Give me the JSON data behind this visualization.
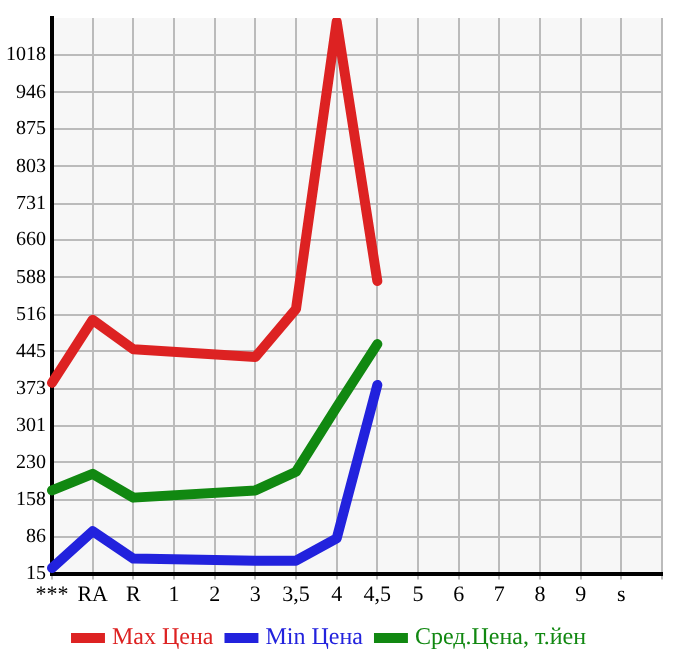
{
  "chart_data": {
    "type": "line",
    "categories": [
      "***",
      "RA",
      "R",
      "1",
      "2",
      "3",
      "3,5",
      "4",
      "4,5",
      "5",
      "6",
      "7",
      "8",
      "9",
      "s",
      null
    ],
    "series": [
      {
        "name": "Max Цена",
        "color": "#dd2222",
        "values": [
          384,
          506,
          449,
          null,
          null,
          434,
          527,
          1083,
          581,
          null,
          null,
          null,
          null,
          null,
          null,
          null
        ]
      },
      {
        "name": "Min Цена",
        "color": "#2222dd",
        "values": [
          26,
          97,
          44,
          null,
          null,
          40,
          40,
          83,
          380,
          null,
          null,
          null,
          null,
          null,
          null,
          null
        ]
      },
      {
        "name": "Сред.Цена, т.йен",
        "color": "#118811",
        "values": [
          176,
          208,
          162,
          null,
          null,
          176,
          212,
          337,
          459,
          null,
          null,
          null,
          null,
          null,
          null,
          null
        ]
      }
    ],
    "ylim": [
      15,
      1090
    ],
    "yticks": [
      15,
      86,
      158,
      230,
      301,
      373,
      445,
      516,
      588,
      660,
      731,
      803,
      875,
      946,
      1018
    ],
    "grid": true,
    "legend": "bottom",
    "marker": "none",
    "line_style": "solid"
  }
}
